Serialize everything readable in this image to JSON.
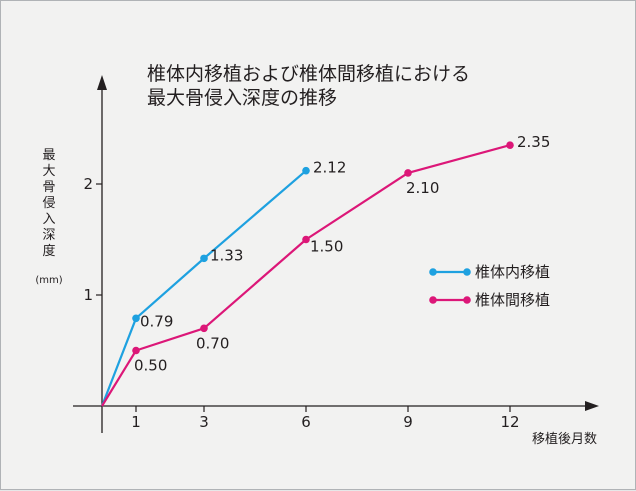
{
  "chart_data": {
    "type": "line",
    "title_lines": [
      "椎体内移植および椎体間移植における",
      "最大骨侵入深度の推移"
    ],
    "xlabel": "移植後月数",
    "ylabel_chars": [
      "最",
      "大",
      "骨",
      "侵",
      "入",
      "深",
      "度"
    ],
    "ylabel_unit": "(mm)",
    "x_ticks": [
      1,
      3,
      6,
      9,
      12
    ],
    "y_ticks": [
      1,
      2
    ],
    "xlim": [
      0,
      14
    ],
    "ylim": [
      0,
      2.8
    ],
    "grid": false,
    "legend_position": "right",
    "series": [
      {
        "name": "椎体内移植",
        "color": "#1ea1e0",
        "x": [
          0,
          1,
          3,
          6
        ],
        "y": [
          0,
          0.79,
          1.33,
          2.12
        ],
        "labels": [
          "",
          "0.79",
          "1.33",
          "2.12"
        ]
      },
      {
        "name": "椎体間移植",
        "color": "#dc1778",
        "x": [
          0,
          1,
          3,
          6,
          9,
          12
        ],
        "y": [
          0,
          0.5,
          0.7,
          1.5,
          2.1,
          2.35
        ],
        "labels": [
          "",
          "0.50",
          "0.70",
          "1.50",
          "2.10",
          "2.35"
        ]
      }
    ]
  }
}
